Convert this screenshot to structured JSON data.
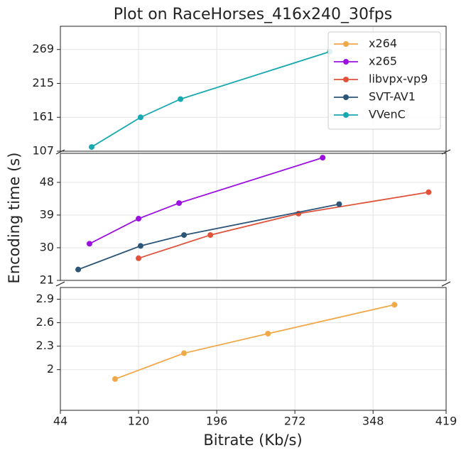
{
  "chart_data": {
    "type": "line",
    "title": "Plot on RaceHorses_416x240_30fps",
    "x_label": "Bitrate (Kb/s)",
    "y_label": "Encoding time (s)",
    "xlim": [
      44,
      419
    ],
    "xticks": [
      44,
      120,
      196,
      272,
      348,
      419
    ],
    "grid": true,
    "legend": "upper right",
    "panels": [
      {
        "ylim": [
          107,
          306
        ],
        "yticks": [
          107,
          161,
          215,
          269
        ]
      },
      {
        "ylim": [
          21,
          56
        ],
        "yticks": [
          21,
          30,
          39,
          48
        ]
      },
      {
        "ylim": [
          1.48,
          3.05
        ],
        "yticks": [
          2,
          2.3,
          2.6,
          2.9
        ]
      }
    ],
    "series": [
      {
        "name": "x264",
        "color": "#f0a848",
        "panel": 2,
        "x": [
          97.2,
          164.2,
          245.8,
          368.8
        ],
        "values": [
          1.88,
          2.21,
          2.46,
          2.83
        ]
      },
      {
        "name": "x265",
        "color": "#9b10e0",
        "panel": 1,
        "x": [
          72.3,
          120,
          159.4,
          299
        ],
        "values": [
          31.1,
          38,
          42.3,
          54.8
        ]
      },
      {
        "name": "libvpx-vp9",
        "color": "#e0523a",
        "panel": 1,
        "x": [
          120,
          189.8,
          275.5,
          402
        ],
        "values": [
          27.1,
          33.5,
          39.4,
          45.3
        ]
      },
      {
        "name": "SVT-AV1",
        "color": "#2c5577",
        "panel": 1,
        "x": [
          61.3,
          122,
          164.2,
          315
        ],
        "values": [
          24,
          30.5,
          33.5,
          42
        ]
      },
      {
        "name": "VVenC",
        "color": "#17a8b0",
        "panel": 0,
        "x": [
          74.4,
          122,
          160.8,
          306
        ],
        "values": [
          113.7,
          161,
          190,
          265.6
        ]
      }
    ]
  }
}
